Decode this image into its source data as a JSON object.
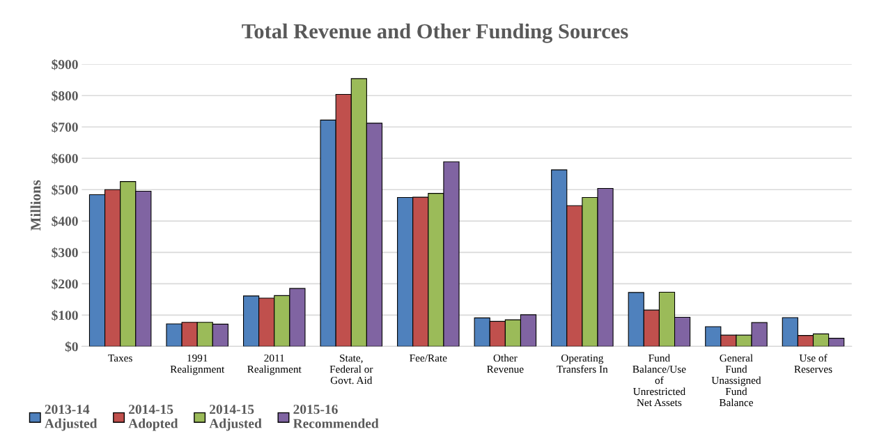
{
  "chart_data": {
    "type": "bar",
    "title": "Total Revenue and Other Funding Sources",
    "ylabel": "Millions",
    "categories": [
      "Taxes",
      "1991\nRealignment",
      "2011\nRealignment",
      "State,\nFederal or\nGovt. Aid",
      "Fee/Rate",
      "Other\nRevenue",
      "Operating\nTransfers In",
      "Fund\nBalance/Use\nof\nUnrestricted\nNet Assets",
      "General\nFund\nUnassigned\nFund\nBalance",
      "Use of\nReserves"
    ],
    "series": [
      {
        "name": "2013-14\nAdjusted",
        "color": "#4f81bd",
        "values": [
          484,
          72,
          161,
          722,
          475,
          91,
          563,
          172,
          63,
          92
        ]
      },
      {
        "name": "2014-15\nAdopted",
        "color": "#c0504d",
        "values": [
          500,
          77,
          154,
          804,
          476,
          80,
          449,
          116,
          36,
          35
        ]
      },
      {
        "name": "2014-15\nAdjusted",
        "color": "#9bbb59",
        "values": [
          526,
          77,
          162,
          854,
          488,
          85,
          475,
          173,
          36,
          40
        ]
      },
      {
        "name": "2015-16\nRecommended",
        "color": "#8064a2",
        "values": [
          495,
          71,
          185,
          712,
          589,
          101,
          504,
          93,
          76,
          26
        ]
      }
    ],
    "ylim": [
      0,
      900
    ],
    "yticks": [
      {
        "value": 0,
        "label": "$0"
      },
      {
        "value": 100,
        "label": "$100"
      },
      {
        "value": 200,
        "label": "$200"
      },
      {
        "value": 300,
        "label": "$300"
      },
      {
        "value": 400,
        "label": "$400"
      },
      {
        "value": 500,
        "label": "$500"
      },
      {
        "value": 600,
        "label": "$600"
      },
      {
        "value": 700,
        "label": "$700"
      },
      {
        "value": 800,
        "label": "$800"
      },
      {
        "value": 900,
        "label": "$900"
      }
    ],
    "grid": "y",
    "legend": "bottom left"
  }
}
